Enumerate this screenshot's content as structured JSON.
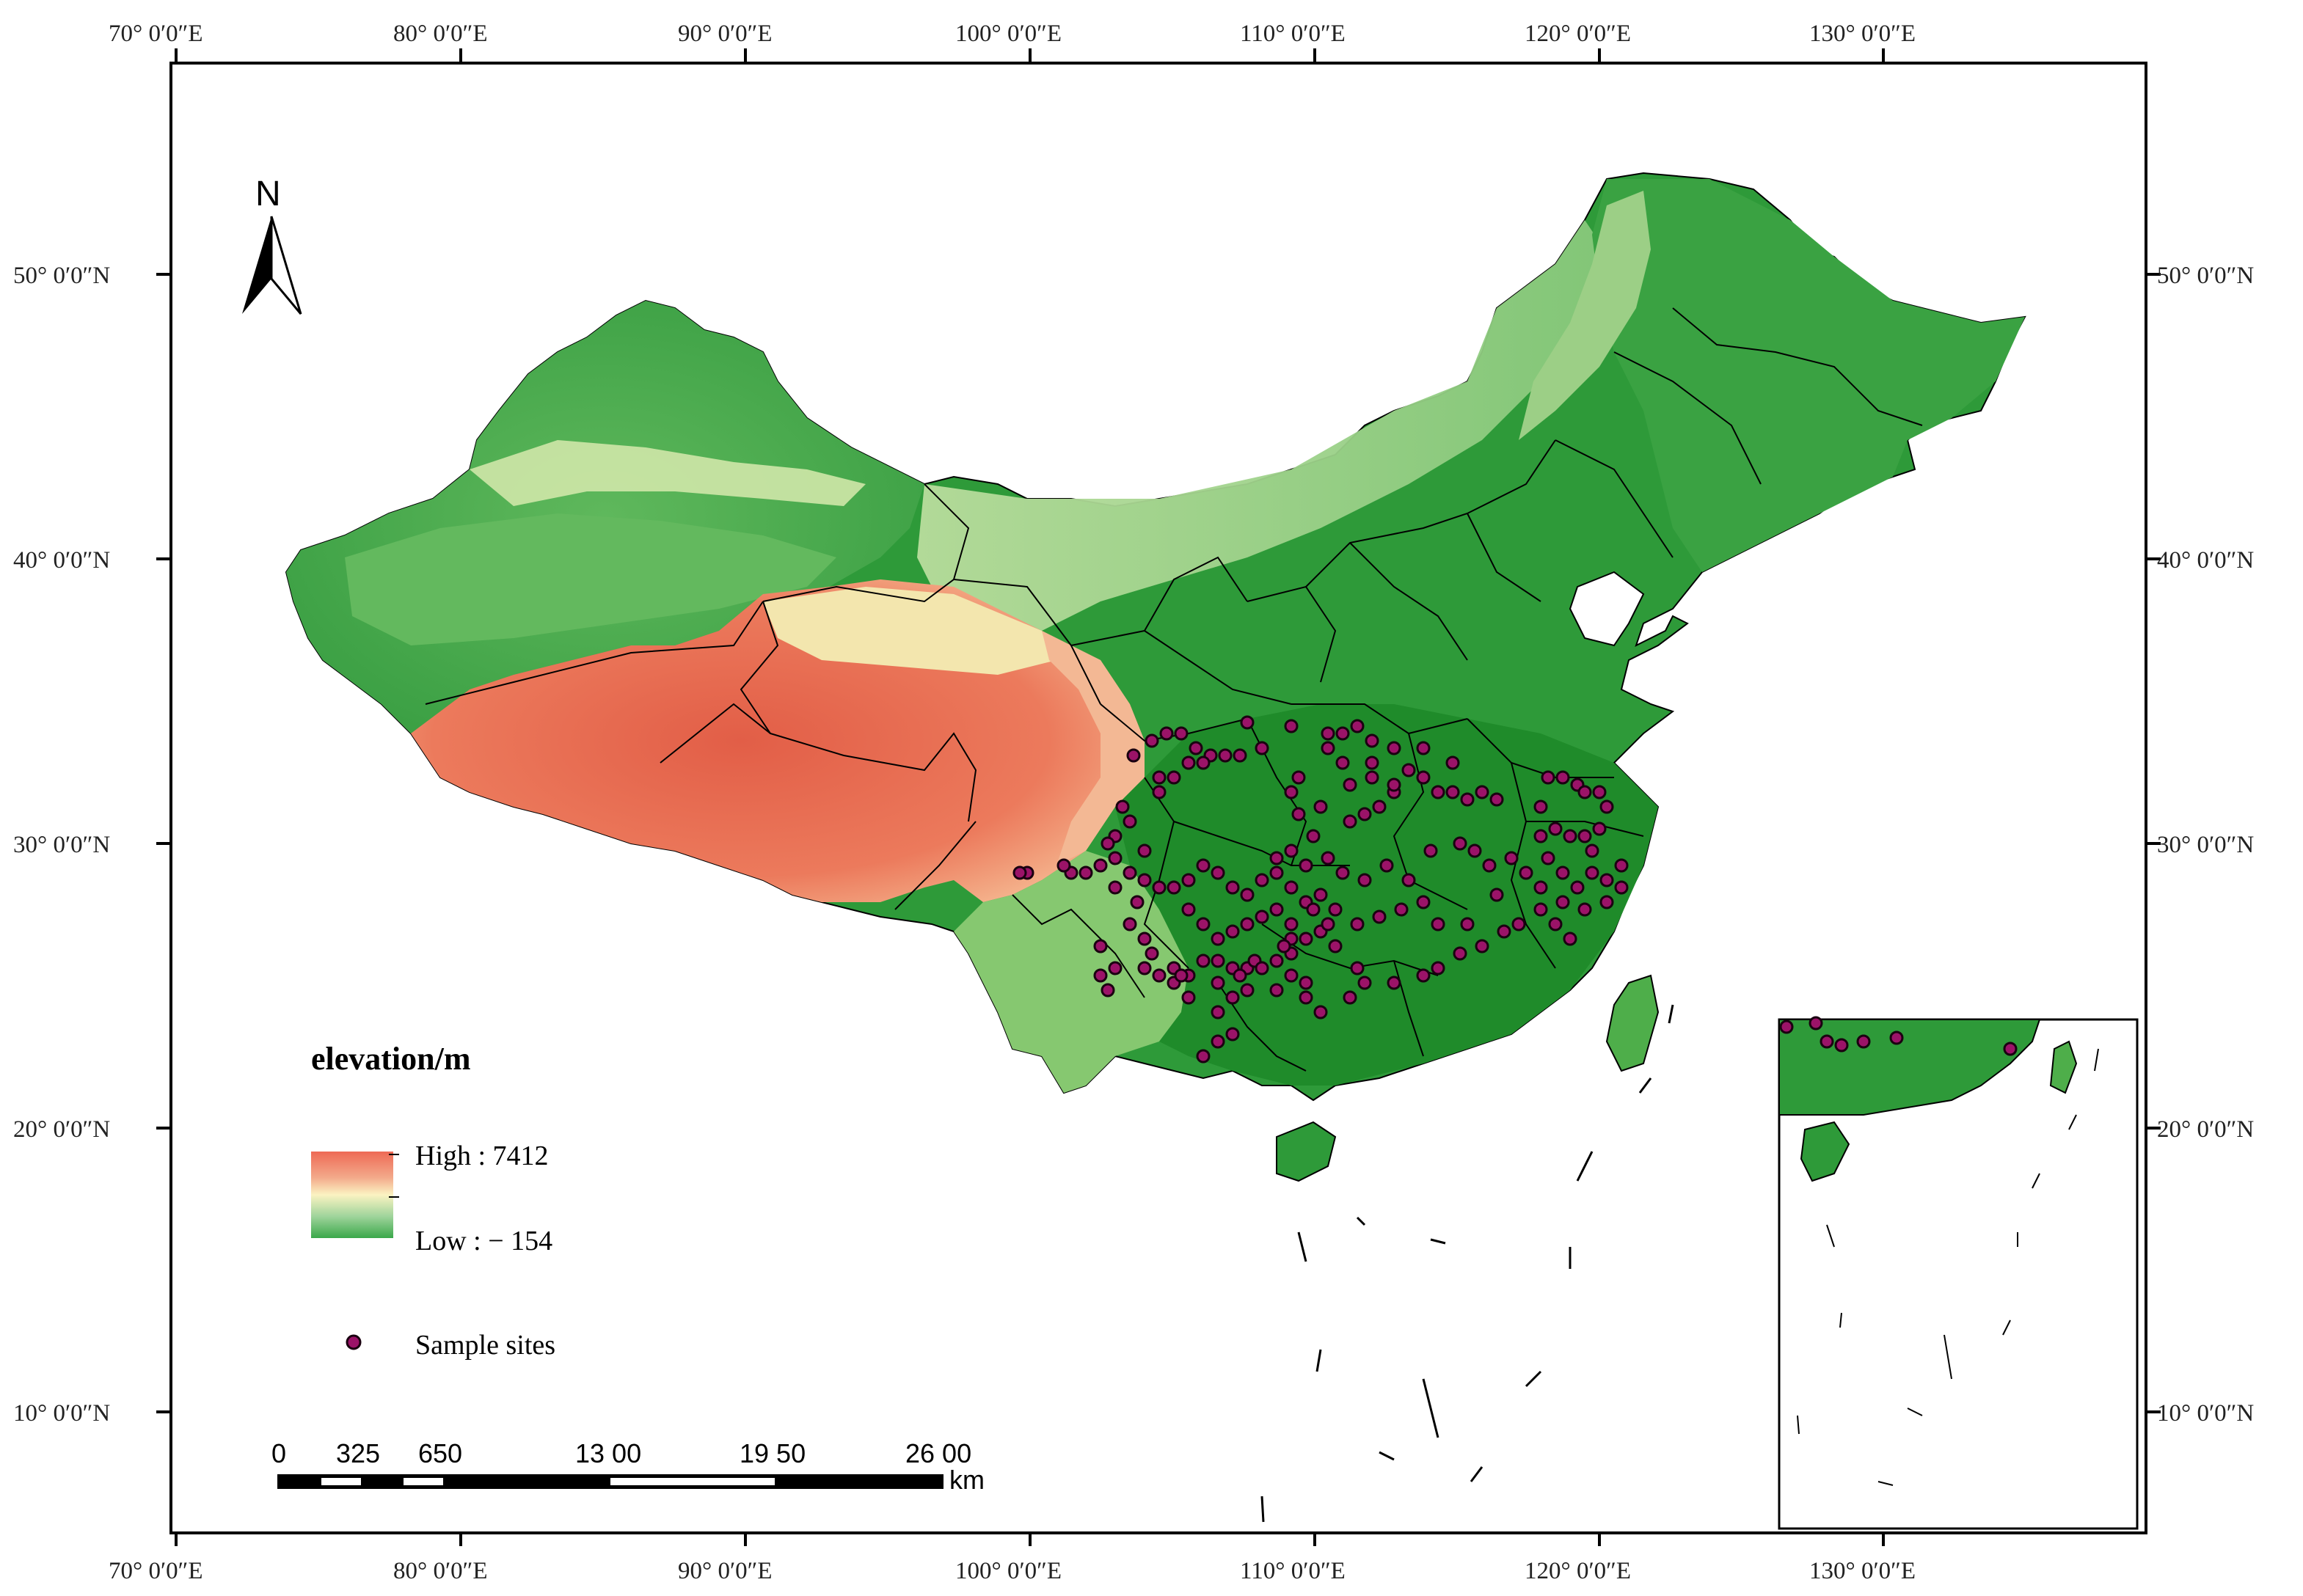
{
  "graticule": {
    "top_longitudes": [
      "70° 0′0″E",
      "80° 0′0″E",
      "90° 0′0″E",
      "100° 0′0″E",
      "110° 0′0″E",
      "120° 0′0″E",
      "130° 0′0″E"
    ],
    "bottom_longitudes": [
      "70° 0′0″E",
      "80° 0′0″E",
      "90° 0′0″E",
      "100° 0′0″E",
      "110° 0′0″E",
      "120° 0′0″E",
      "130° 0′0″E"
    ],
    "left_latitudes": [
      "50° 0′0″N",
      "40° 0′0″N",
      "30° 0′0″N",
      "20° 0′0″N",
      "10° 0′0″N"
    ],
    "right_latitudes": [
      "50° 0′0″N",
      "40° 0′0″N",
      "30° 0′0″N",
      "20° 0′0″N",
      "10° 0′0″N"
    ]
  },
  "north_arrow": {
    "label": "N"
  },
  "legend": {
    "title": "elevation/m",
    "high_label": "High : 7412",
    "low_label": "Low : − 154",
    "sites_label": "Sample sites",
    "gradient_colors": [
      "#ee6a55",
      "#f3a98a",
      "#fbf3c2",
      "#9fd49b",
      "#3aa84a"
    ]
  },
  "scale_bar": {
    "labels": [
      "0",
      "325",
      "650",
      "13 00",
      "19 50",
      "26 00"
    ],
    "unit": "km"
  },
  "colors": {
    "site_fill": "#9b1368",
    "site_stroke": "#1a0010",
    "lowland_green": "#2f9a3a",
    "plateau_red": "#e8654d"
  }
}
